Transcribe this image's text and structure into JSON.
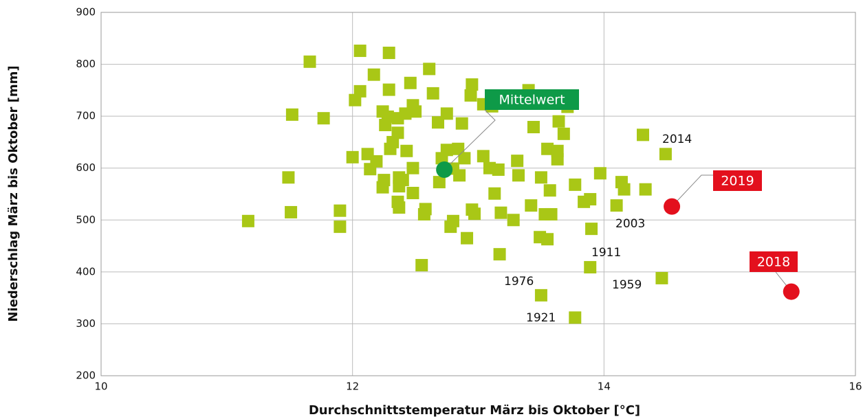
{
  "chart_data": {
    "type": "scatter",
    "x_label": "Durchschnittstemperatur März bis Oktober [°C]",
    "y_label": "Niederschlag März bis Oktober [mm]",
    "xlim": [
      10,
      16
    ],
    "xticks": [
      10,
      12,
      14,
      16
    ],
    "ylim": [
      200,
      900
    ],
    "yticks": [
      200,
      300,
      400,
      500,
      600,
      700,
      800,
      900
    ],
    "grid": true,
    "series": [
      {
        "color": "#a9c716",
        "marker": "square",
        "x": [
          11.17,
          11.66,
          11.52,
          11.49,
          11.51,
          11.77,
          11.9,
          12.06,
          12.29,
          12.17,
          12.06,
          12.02,
          12.29,
          12.46,
          12.61,
          12.64,
          12.24,
          12.28,
          12.26,
          12.36,
          12.42,
          12.48,
          12.5,
          12.75,
          12.68,
          12.87,
          12.95,
          12.94,
          13.04,
          12.36,
          12.32,
          12.3,
          12.43,
          12.12,
          12.0,
          12.19,
          12.14,
          12.48,
          12.37,
          12.4,
          12.25,
          12.24,
          12.37,
          12.48,
          12.36,
          12.37,
          12.58,
          12.57,
          11.9,
          12.55,
          12.75,
          12.84,
          12.71,
          12.8,
          12.85,
          12.69,
          12.89,
          13.04,
          13.09,
          13.16,
          13.31,
          13.32,
          13.13,
          13.18,
          12.95,
          12.97,
          12.8,
          12.78,
          12.91,
          13.28,
          13.17,
          13.42,
          13.4,
          13.44,
          13.71,
          13.64,
          13.68,
          13.55,
          13.63,
          13.63,
          13.5,
          13.57,
          13.77,
          13.84,
          13.89,
          13.53,
          13.58,
          13.9,
          13.49,
          13.55,
          13.89,
          13.5,
          13.77,
          13.97,
          14.14,
          14.16,
          14.1,
          14.33,
          14.31,
          14.49,
          14.46,
          13.11
        ],
        "values": [
          498,
          805,
          703,
          582,
          515,
          696,
          518,
          826,
          822,
          780,
          748,
          731,
          751,
          764,
          791,
          744,
          709,
          699,
          683,
          696,
          705,
          721,
          709,
          705,
          688,
          686,
          761,
          740,
          723,
          668,
          650,
          637,
          633,
          627,
          621,
          613,
          598,
          600,
          582,
          577,
          577,
          563,
          565,
          552,
          535,
          524,
          521,
          511,
          487,
          413,
          635,
          637,
          619,
          599,
          586,
          573,
          619,
          623,
          600,
          597,
          614,
          586,
          551,
          514,
          520,
          512,
          498,
          487,
          465,
          500,
          434,
          528,
          750,
          679,
          718,
          690,
          666,
          637,
          617,
          633,
          582,
          557,
          568,
          535,
          540,
          511,
          511,
          483,
          467,
          463,
          409,
          355,
          312,
          590,
          573,
          559,
          528,
          559,
          664,
          627,
          388,
          719
        ]
      }
    ],
    "highlights": [
      {
        "label": "Mittelwert",
        "color": "#0e9a48",
        "x": 12.73,
        "y": 597
      },
      {
        "label": "2019",
        "color": "#e3101d",
        "x": 14.54,
        "y": 526
      },
      {
        "label": "2018",
        "color": "#e3101d",
        "x": 15.49,
        "y": 362
      }
    ],
    "annotations": [
      "2014",
      "2003",
      "1911",
      "1976",
      "1959",
      "1921"
    ]
  }
}
